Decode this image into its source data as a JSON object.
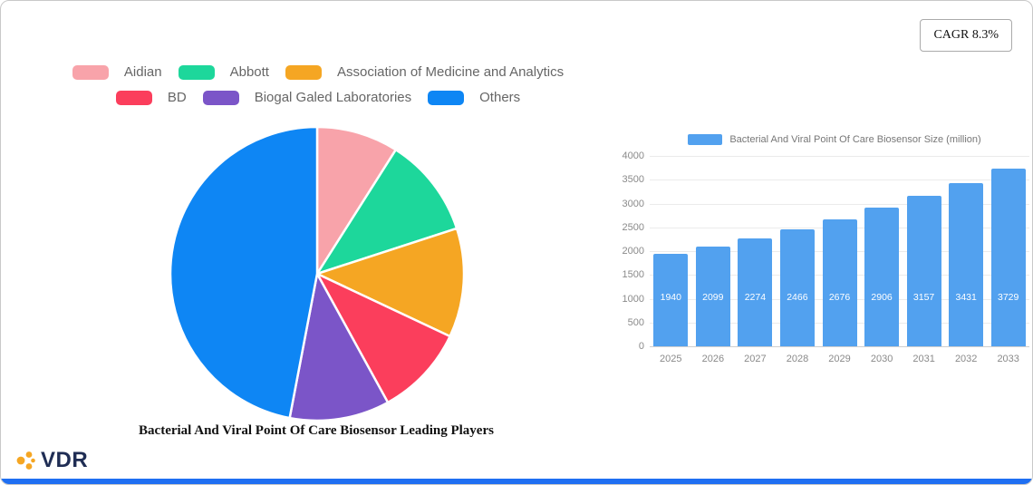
{
  "cagr_badge": "CAGR 8.3%",
  "logo": {
    "text": "VDR",
    "accent_color": "#f5a623",
    "text_color": "#1f2d54"
  },
  "accent_bar_color": "#1f6ff2",
  "chart_data": [
    {
      "type": "pie",
      "title": "Bacterial And Viral Point Of Care Biosensor Leading Players",
      "legend_position": "top",
      "slices": [
        {
          "label": "Aidian",
          "value": 9,
          "color": "#f8a3aa"
        },
        {
          "label": "Abbott",
          "value": 11,
          "color": "#1dd79b"
        },
        {
          "label": "Association of Medicine and Analytics",
          "value": 12,
          "color": "#f5a623"
        },
        {
          "label": "BD",
          "value": 10,
          "color": "#fb3e5c"
        },
        {
          "label": "Biogal Galed Laboratories",
          "value": 11,
          "color": "#7b55c8"
        },
        {
          "label": "Others",
          "value": 47,
          "color": "#0e86f4"
        }
      ]
    },
    {
      "type": "bar",
      "legend": "Bacterial And Viral Point Of Care Biosensor Size (million)",
      "categories": [
        "2025",
        "2026",
        "2027",
        "2028",
        "2029",
        "2030",
        "2031",
        "2032",
        "2033"
      ],
      "values": [
        1940,
        2099,
        2274,
        2466,
        2676,
        2906,
        3157,
        3431,
        3729
      ],
      "ylim": [
        0,
        4000
      ],
      "yticks": [
        0,
        500,
        1000,
        1500,
        2000,
        2500,
        3000,
        3500,
        4000
      ],
      "bar_color": "#52a1ef",
      "grid": true,
      "legend_position": "top"
    }
  ]
}
